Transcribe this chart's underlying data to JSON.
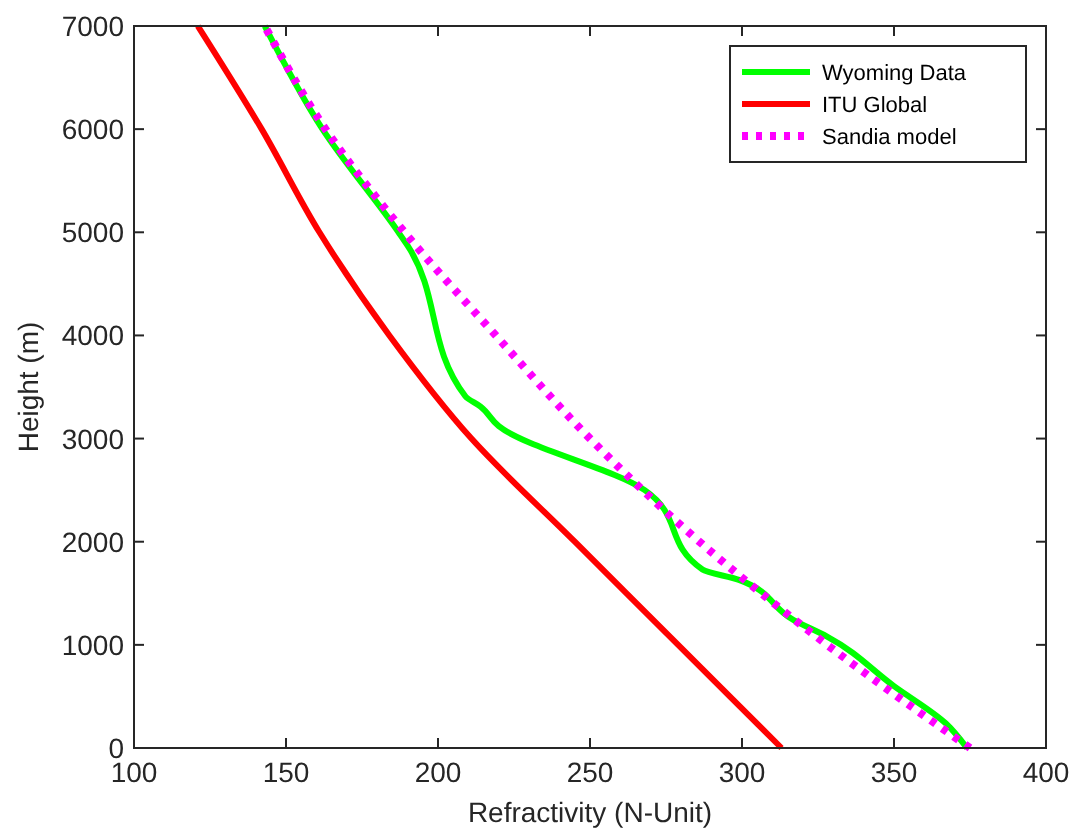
{
  "chart_data": {
    "type": "line",
    "xlabel": "Refractivity (N-Unit)",
    "ylabel": "Height (m)",
    "xlim": [
      100,
      400
    ],
    "ylim": [
      0,
      7000
    ],
    "xticks": [
      100,
      150,
      200,
      250,
      300,
      350,
      400
    ],
    "yticks": [
      0,
      1000,
      2000,
      3000,
      4000,
      5000,
      6000,
      7000
    ],
    "grid": false,
    "legend": "top right",
    "series": [
      {
        "name": "Wyoming Data",
        "color": "#00ff00",
        "line_style": "solid",
        "x": [
          374,
          367,
          350,
          328,
          317,
          299,
          287,
          268,
          220,
          214,
          209,
          190,
          187,
          162,
          143
        ],
        "values": [
          0,
          240,
          600,
          1080,
          1240,
          1630,
          1730,
          2500,
          3120,
          3310,
          3410,
          4870,
          5000,
          6000,
          7000
        ]
      },
      {
        "name": "ITU Global",
        "color": "#ff0000",
        "line_style": "solid",
        "x": [
          313,
          279,
          245,
          211,
          184,
          161,
          142,
          121
        ],
        "values": [
          0,
          1000,
          2000,
          3000,
          4000,
          5000,
          6000,
          7000
        ]
      },
      {
        "name": "Sandia model",
        "color": "#ff00ff",
        "line_style": "dotted",
        "x": [
          375,
          328,
          286,
          250,
          219,
          189,
          163,
          143
        ],
        "values": [
          0,
          1000,
          2000,
          3000,
          4000,
          5000,
          6000,
          7000
        ]
      }
    ]
  }
}
